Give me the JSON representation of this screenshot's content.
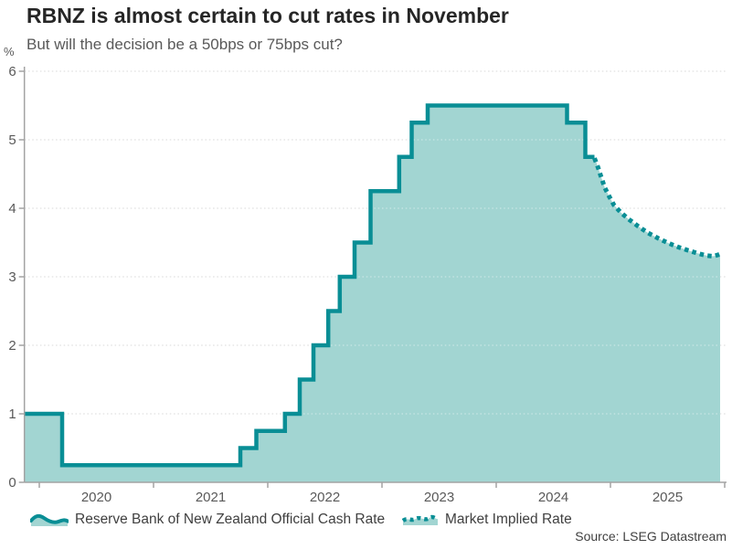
{
  "header": {
    "title": "RBNZ is almost certain to cut rates in November",
    "subtitle": "But will the decision be a 50bps or 75bps cut?"
  },
  "axis": {
    "unit_label": "%"
  },
  "legend": {
    "ocr_label": "Reserve Bank of New Zealand Official Cash Rate",
    "implied_label": "Market Implied Rate"
  },
  "source_text": "Source: LSEG Datastream",
  "colors": {
    "line": "#098e95",
    "fill": "#a2d5d2",
    "axis": "#a3a3a3",
    "grid": "#d8d8d8",
    "grid_over_fill": "rgba(255,255,255,0.5)",
    "title_text": "#262626",
    "subtitle_text": "#595959",
    "tick_text": "#595959",
    "legend_text": "#404040"
  },
  "chart_data": {
    "type": "area",
    "title": "RBNZ is almost certain to cut rates in November",
    "subtitle": "But will the decision be a 50bps or 75bps cut?",
    "ylabel": "%",
    "ylim": [
      0,
      6
    ],
    "yticks": [
      0,
      1,
      2,
      3,
      4,
      5,
      6
    ],
    "year_boundary_ticks": [
      2020,
      2021,
      2022,
      2023,
      2024,
      2025,
      2026
    ],
    "year_labels": [
      "2020",
      "2021",
      "2022",
      "2023",
      "2024",
      "2025"
    ],
    "x_range": [
      2019.87,
      2025.98
    ],
    "grid": true,
    "legend_position": "bottom",
    "series": [
      {
        "name": "Reserve Bank of New Zealand Official Cash Rate",
        "type": "step-area",
        "line_style": "solid",
        "points_year_value": [
          [
            2019.87,
            1.0
          ],
          [
            2020.2,
            0.25
          ],
          [
            2021.76,
            0.5
          ],
          [
            2021.9,
            0.75
          ],
          [
            2022.15,
            1.0
          ],
          [
            2022.28,
            1.5
          ],
          [
            2022.4,
            2.0
          ],
          [
            2022.53,
            2.5
          ],
          [
            2022.63,
            3.0
          ],
          [
            2022.76,
            3.5
          ],
          [
            2022.9,
            4.25
          ],
          [
            2023.15,
            4.75
          ],
          [
            2023.26,
            5.25
          ],
          [
            2023.4,
            5.5
          ],
          [
            2024.62,
            5.25
          ],
          [
            2024.78,
            4.75
          ]
        ],
        "end_year": 2024.86
      },
      {
        "name": "Market Implied Rate",
        "type": "line",
        "line_style": "dotted",
        "points_year_value": [
          [
            2024.86,
            4.73
          ],
          [
            2024.89,
            4.6
          ],
          [
            2024.92,
            4.45
          ],
          [
            2024.95,
            4.3
          ],
          [
            2024.99,
            4.17
          ],
          [
            2025.03,
            4.05
          ],
          [
            2025.09,
            3.94
          ],
          [
            2025.16,
            3.84
          ],
          [
            2025.24,
            3.74
          ],
          [
            2025.33,
            3.64
          ],
          [
            2025.42,
            3.56
          ],
          [
            2025.51,
            3.49
          ],
          [
            2025.6,
            3.43
          ],
          [
            2025.69,
            3.38
          ],
          [
            2025.77,
            3.34
          ],
          [
            2025.84,
            3.31
          ],
          [
            2025.9,
            3.3
          ],
          [
            2025.96,
            3.33
          ]
        ]
      }
    ]
  }
}
